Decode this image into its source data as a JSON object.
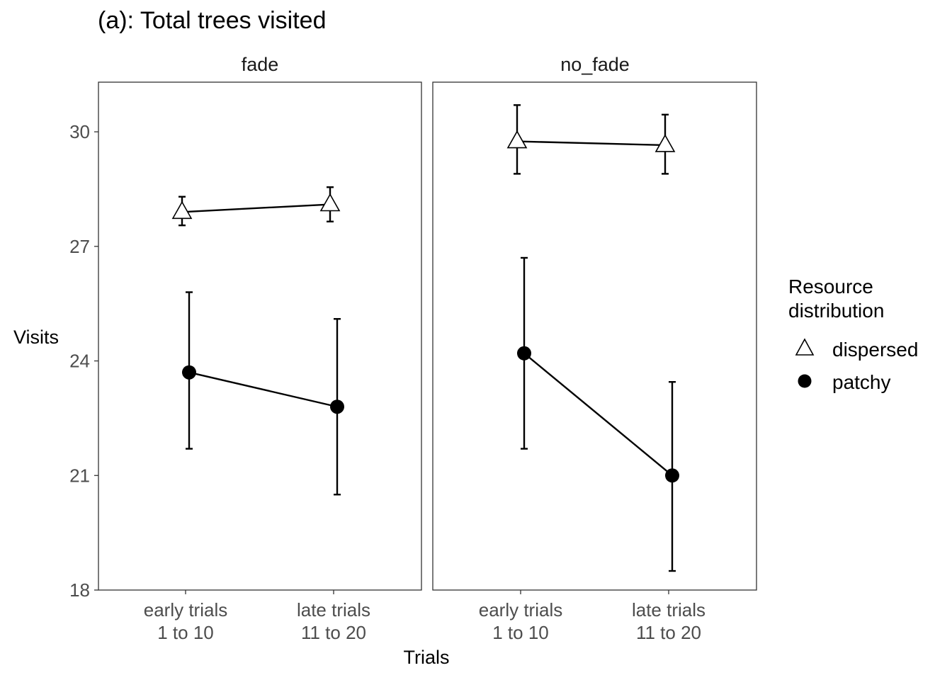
{
  "chart_data": {
    "type": "line",
    "title": "(a): Total trees visited",
    "xlabel": "Trials",
    "ylabel": "Visits",
    "ylim": [
      18,
      31.3
    ],
    "yticks": [
      18,
      21,
      24,
      27,
      30
    ],
    "categories": [
      [
        "early trials",
        "1 to 10"
      ],
      [
        "late trials",
        "11 to 20"
      ]
    ],
    "grid": false,
    "legend": {
      "title": [
        "Resource",
        "distribution"
      ],
      "position": "right",
      "entries": [
        {
          "label": "dispersed",
          "marker": "open-triangle"
        },
        {
          "label": "patchy",
          "marker": "filled-circle"
        }
      ]
    },
    "panels": [
      {
        "name": "fade",
        "series": [
          {
            "name": "dispersed",
            "values": [
              27.9,
              28.1
            ],
            "lower": [
              27.55,
              27.65
            ],
            "upper": [
              28.3,
              28.55
            ]
          },
          {
            "name": "patchy",
            "values": [
              23.7,
              22.8
            ],
            "lower": [
              21.7,
              20.5
            ],
            "upper": [
              25.8,
              25.1
            ]
          }
        ]
      },
      {
        "name": "no_fade",
        "series": [
          {
            "name": "dispersed",
            "values": [
              29.75,
              29.65
            ],
            "lower": [
              28.9,
              28.9
            ],
            "upper": [
              30.7,
              30.45
            ]
          },
          {
            "name": "patchy",
            "values": [
              24.2,
              21.0
            ],
            "lower": [
              21.7,
              18.5
            ],
            "upper": [
              26.7,
              23.45
            ]
          }
        ]
      }
    ]
  }
}
